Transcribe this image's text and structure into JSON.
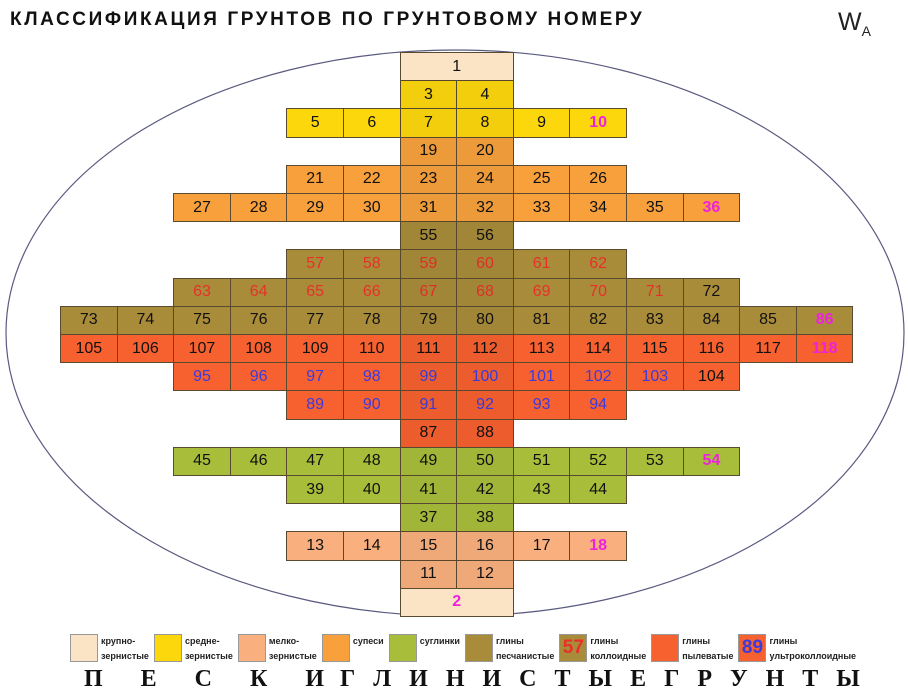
{
  "title": "КЛАССИФИКАЦИЯ ГРУНТОВ ПО ГРУНТОВОМУ НОМЕРУ",
  "symbol": {
    "main": "W",
    "sub": "A"
  },
  "colors": {
    "sand_coarse": "#fbe3c6",
    "sand_medium": "#fcd70c",
    "sand_fine": "#f9b07e",
    "sandy_loam": "#f7a03c",
    "loam": "#a8be3a",
    "clay_sandy": "#a98c3a",
    "clay_colloidal": "#a98c3a",
    "clay_silty": "#f7602f",
    "clay_ultra": "#f7602f",
    "text_r": "#e8302a",
    "text_b": "#3b3ce0",
    "text_m": "#ee22dd"
  },
  "rows": [
    {
      "start": 6,
      "span": 2,
      "cat": "sand_coarse",
      "cells": [
        [
          "1",
          ""
        ]
      ]
    },
    {
      "start": 6,
      "cat": "sand_medium",
      "cells": [
        [
          "3",
          ""
        ],
        [
          "4",
          ""
        ]
      ]
    },
    {
      "start": 4,
      "cat": "sand_medium",
      "cells": [
        [
          "5",
          ""
        ],
        [
          "6",
          ""
        ],
        [
          "7",
          ""
        ],
        [
          "8",
          ""
        ],
        [
          "9",
          ""
        ],
        [
          "10",
          "m"
        ]
      ]
    },
    {
      "start": 6,
      "cat": "sandy_loam",
      "cells": [
        [
          "19",
          ""
        ],
        [
          "20",
          ""
        ]
      ]
    },
    {
      "start": 4,
      "cat": "sandy_loam",
      "cells": [
        [
          "21",
          ""
        ],
        [
          "22",
          ""
        ],
        [
          "23",
          ""
        ],
        [
          "24",
          ""
        ],
        [
          "25",
          ""
        ],
        [
          "26",
          ""
        ]
      ]
    },
    {
      "start": 2,
      "cat": "sandy_loam",
      "cells": [
        [
          "27",
          ""
        ],
        [
          "28",
          ""
        ],
        [
          "29",
          ""
        ],
        [
          "30",
          ""
        ],
        [
          "31",
          ""
        ],
        [
          "32",
          ""
        ],
        [
          "33",
          ""
        ],
        [
          "34",
          ""
        ],
        [
          "35",
          ""
        ],
        [
          "36",
          "m"
        ]
      ]
    },
    {
      "start": 6,
      "cat": "clay_sandy",
      "cells": [
        [
          "55",
          ""
        ],
        [
          "56",
          ""
        ]
      ]
    },
    {
      "start": 4,
      "cat": "clay_colloidal",
      "cells": [
        [
          "57",
          "r"
        ],
        [
          "58",
          "r"
        ],
        [
          "59",
          "r"
        ],
        [
          "60",
          "r"
        ],
        [
          "61",
          "r"
        ],
        [
          "62",
          "r"
        ]
      ]
    },
    {
      "start": 2,
      "cat": "clay_colloidal",
      "cells": [
        [
          "63",
          "r"
        ],
        [
          "64",
          "r"
        ],
        [
          "65",
          "r"
        ],
        [
          "66",
          "r"
        ],
        [
          "67",
          "r"
        ],
        [
          "68",
          "r"
        ],
        [
          "69",
          "r"
        ],
        [
          "70",
          "r"
        ],
        [
          "71",
          "r"
        ],
        [
          "72",
          ""
        ]
      ]
    },
    {
      "start": 0,
      "cat": "clay_sandy",
      "cells": [
        [
          "73",
          ""
        ],
        [
          "74",
          ""
        ],
        [
          "75",
          ""
        ],
        [
          "76",
          ""
        ],
        [
          "77",
          ""
        ],
        [
          "78",
          ""
        ],
        [
          "79",
          ""
        ],
        [
          "80",
          ""
        ],
        [
          "81",
          ""
        ],
        [
          "82",
          ""
        ],
        [
          "83",
          ""
        ],
        [
          "84",
          ""
        ],
        [
          "85",
          ""
        ],
        [
          "86",
          "m"
        ]
      ]
    },
    {
      "start": 0,
      "cat": "clay_silty",
      "cells": [
        [
          "105",
          ""
        ],
        [
          "106",
          ""
        ],
        [
          "107",
          ""
        ],
        [
          "108",
          ""
        ],
        [
          "109",
          ""
        ],
        [
          "110",
          ""
        ],
        [
          "111",
          ""
        ],
        [
          "112",
          ""
        ],
        [
          "113",
          ""
        ],
        [
          "114",
          ""
        ],
        [
          "115",
          ""
        ],
        [
          "116",
          ""
        ],
        [
          "117",
          ""
        ],
        [
          "118",
          "m"
        ]
      ]
    },
    {
      "start": 2,
      "cat": "clay_ultra",
      "cells": [
        [
          "95",
          "b"
        ],
        [
          "96",
          "b"
        ],
        [
          "97",
          "b"
        ],
        [
          "98",
          "b"
        ],
        [
          "99",
          "b"
        ],
        [
          "100",
          "b"
        ],
        [
          "101",
          "b"
        ],
        [
          "102",
          "b"
        ],
        [
          "103",
          "b"
        ],
        [
          "104",
          ""
        ]
      ]
    },
    {
      "start": 4,
      "cat": "clay_ultra",
      "cells": [
        [
          "89",
          "b"
        ],
        [
          "90",
          "b"
        ],
        [
          "91",
          "b"
        ],
        [
          "92",
          "b"
        ],
        [
          "93",
          "b"
        ],
        [
          "94",
          "b"
        ]
      ]
    },
    {
      "start": 6,
      "cat": "clay_silty",
      "cells": [
        [
          "87",
          ""
        ],
        [
          "88",
          ""
        ]
      ]
    },
    {
      "start": 2,
      "cat": "loam",
      "cells": [
        [
          "45",
          ""
        ],
        [
          "46",
          ""
        ],
        [
          "47",
          ""
        ],
        [
          "48",
          ""
        ],
        [
          "49",
          ""
        ],
        [
          "50",
          ""
        ],
        [
          "51",
          ""
        ],
        [
          "52",
          ""
        ],
        [
          "53",
          ""
        ],
        [
          "54",
          "m"
        ]
      ]
    },
    {
      "start": 4,
      "cat": "loam",
      "cells": [
        [
          "39",
          ""
        ],
        [
          "40",
          ""
        ],
        [
          "41",
          ""
        ],
        [
          "42",
          ""
        ],
        [
          "43",
          ""
        ],
        [
          "44",
          ""
        ]
      ]
    },
    {
      "start": 6,
      "cat": "loam",
      "cells": [
        [
          "37",
          ""
        ],
        [
          "38",
          ""
        ]
      ]
    },
    {
      "start": 4,
      "cat": "sand_fine",
      "cells": [
        [
          "13",
          ""
        ],
        [
          "14",
          ""
        ],
        [
          "15",
          ""
        ],
        [
          "16",
          ""
        ],
        [
          "17",
          ""
        ],
        [
          "18",
          "m"
        ]
      ]
    },
    {
      "start": 6,
      "cat": "sand_fine",
      "cells": [
        [
          "11",
          ""
        ],
        [
          "12",
          ""
        ]
      ]
    },
    {
      "start": 6,
      "span": 2,
      "cat": "sand_coarse",
      "cells": [
        [
          "2",
          "m"
        ]
      ]
    }
  ],
  "legend": [
    {
      "cat": "sand_coarse",
      "line1": "крупно-",
      "line2": "зернистые",
      "sample": "",
      "tone": ""
    },
    {
      "cat": "sand_medium",
      "line1": "средне-",
      "line2": "зернистые",
      "sample": "",
      "tone": ""
    },
    {
      "cat": "sand_fine",
      "line1": "мелко-",
      "line2": "зернистые",
      "sample": "",
      "tone": ""
    },
    {
      "cat": "sandy_loam",
      "line1": "супеси",
      "line2": "",
      "sample": "",
      "tone": ""
    },
    {
      "cat": "loam",
      "line1": "суглинки",
      "line2": "",
      "sample": "",
      "tone": ""
    },
    {
      "cat": "clay_sandy",
      "line1": "глины",
      "line2": "песчанистые",
      "sample": "",
      "tone": ""
    },
    {
      "cat": "clay_colloidal",
      "line1": "глины",
      "line2": "коллоидные",
      "sample": "57",
      "tone": "r"
    },
    {
      "cat": "clay_silty",
      "line1": "глины",
      "line2": "пылеватые",
      "sample": "",
      "tone": ""
    },
    {
      "cat": "clay_ultra",
      "line1": "глины",
      "line2": "ультроколлоидные",
      "sample": "89",
      "tone": "b"
    }
  ],
  "groups": {
    "sands": "П Е С К И",
    "clays": "Г Л И Н И С Т Ы Е   Г Р У Н Т Ы"
  }
}
